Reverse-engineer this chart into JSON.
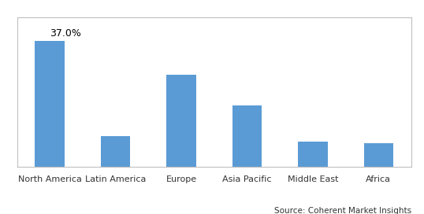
{
  "categories": [
    "North America",
    "Latin America",
    "Europe",
    "Asia Pacific",
    "Middle East",
    "Africa"
  ],
  "values": [
    37.0,
    9.0,
    27.0,
    18.0,
    7.5,
    7.0
  ],
  "bar_color": "#5B9BD5",
  "label_text": "37.0%",
  "label_bar_index": 0,
  "ylim": [
    0,
    44
  ],
  "background_color": "#ffffff",
  "source_text": "Source: Coherent Market Insights",
  "bar_width": 0.45,
  "border_color": "#c0c0c0",
  "tick_label_fontsize": 8,
  "label_fontsize": 9,
  "source_fontsize": 7.5
}
